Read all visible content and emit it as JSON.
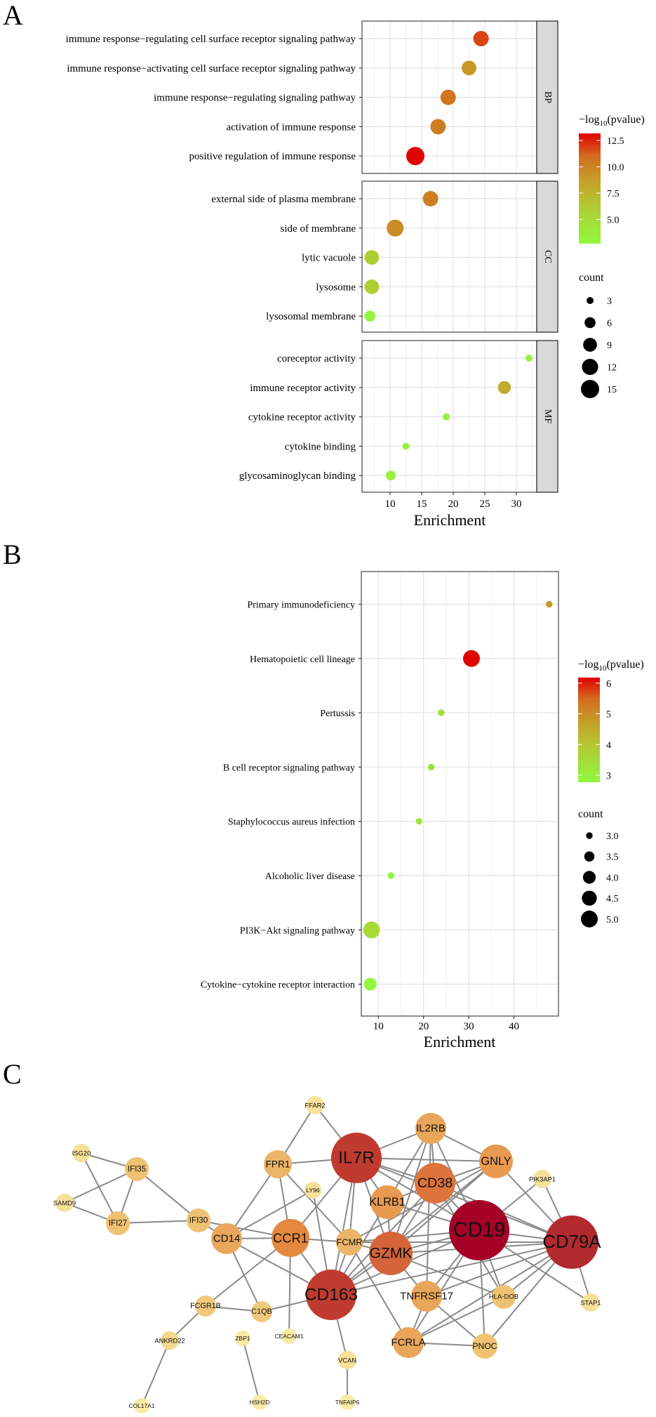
{
  "panels": {
    "a": "A",
    "b": "B",
    "c": "C"
  },
  "chart_data": [
    {
      "type": "scatter",
      "subtype": "dot-plot-faceted",
      "xlabel": "Enrichment",
      "xlim": [
        5.6,
        33.2
      ],
      "xticks": [
        10,
        15,
        20,
        25,
        30
      ],
      "grid": true,
      "color_legend": {
        "title": "−log10(pvalue)",
        "title_main": "−log",
        "title_sub": "10",
        "title_tail": "(pvalue)",
        "range": [
          2.7,
          13.17
        ],
        "ticks": [
          "12.5",
          "10.0",
          "7.5",
          "5.0"
        ],
        "tick_values": [
          12.5,
          10,
          7.5,
          5
        ],
        "low_color": "#90f840",
        "high_color": "#e00000"
      },
      "size_legend": {
        "title": "count",
        "values": [
          3,
          6,
          9,
          12,
          15
        ],
        "labels": [
          "3",
          "6",
          "9",
          "12",
          "15"
        ]
      },
      "legend_position": "right",
      "facets": [
        {
          "name": "BP",
          "terms": [
            {
              "term": "immune response−regulating cell surface receptor signaling pathway",
              "enrichment": 24.4,
              "neglog10p": 11.8,
              "count": 11
            },
            {
              "term": "immune response−activating cell surface receptor signaling pathway",
              "enrichment": 22.5,
              "neglog10p": 9.0,
              "count": 10
            },
            {
              "term": "immune response−regulating signaling pathway",
              "enrichment": 19.2,
              "neglog10p": 10.6,
              "count": 11
            },
            {
              "term": "activation of immune response",
              "enrichment": 17.6,
              "neglog10p": 10.2,
              "count": 11
            },
            {
              "term": "positive regulation of immune response",
              "enrichment": 14.0,
              "neglog10p": 13.1,
              "count": 15
            }
          ]
        },
        {
          "name": "CC",
          "terms": [
            {
              "term": "external side of plasma membrane",
              "enrichment": 16.4,
              "neglog10p": 10.2,
              "count": 11
            },
            {
              "term": "side of membrane",
              "enrichment": 10.8,
              "neglog10p": 9.6,
              "count": 13
            },
            {
              "term": "lytic vacuole",
              "enrichment": 7.1,
              "neglog10p": 5.8,
              "count": 10
            },
            {
              "term": "lysosome",
              "enrichment": 7.1,
              "neglog10p": 5.8,
              "count": 10
            },
            {
              "term": "lysosomal membrane",
              "enrichment": 6.8,
              "neglog10p": 3.0,
              "count": 6
            }
          ]
        },
        {
          "name": "MF",
          "terms": [
            {
              "term": "coreceptor activity",
              "enrichment": 32.0,
              "neglog10p": 3.2,
              "count": 3
            },
            {
              "term": "immune receptor activity",
              "enrichment": 28.1,
              "neglog10p": 8.0,
              "count": 8
            },
            {
              "term": "cytokine receptor activity",
              "enrichment": 18.9,
              "neglog10p": 3.2,
              "count": 3
            },
            {
              "term": "cytokine binding",
              "enrichment": 12.5,
              "neglog10p": 3.2,
              "count": 3
            },
            {
              "term": "glycosaminoglycan binding",
              "enrichment": 10.1,
              "neglog10p": 3.3,
              "count": 5
            }
          ]
        }
      ]
    },
    {
      "type": "scatter",
      "subtype": "dot-plot",
      "xlabel": "Enrichment",
      "xlim": [
        6.2,
        49.9
      ],
      "xticks": [
        10,
        20,
        30,
        40
      ],
      "grid": true,
      "color_legend": {
        "title": "−log10(pvalue)",
        "title_main": "−log",
        "title_sub": "10",
        "title_tail": "(pvalue)",
        "range": [
          2.77,
          6.18
        ],
        "ticks": [
          "6",
          "5",
          "4",
          "3"
        ],
        "tick_values": [
          6,
          5,
          4,
          3
        ],
        "low_color": "#90f840",
        "high_color": "#e00000"
      },
      "size_legend": {
        "title": "count",
        "values": [
          3.0,
          3.5,
          4.0,
          4.5,
          5.0
        ],
        "labels": [
          "3.0",
          "3.5",
          "4.0",
          "4.5",
          "5.0"
        ]
      },
      "legend_position": "right",
      "terms": [
        {
          "term": "Primary immunodeficiency",
          "enrichment": 47.8,
          "neglog10p": 4.8,
          "count": 3
        },
        {
          "term": "Hematopoietic cell lineage",
          "enrichment": 30.6,
          "neglog10p": 6.2,
          "count": 5
        },
        {
          "term": "Pertussis",
          "enrichment": 23.9,
          "neglog10p": 3.4,
          "count": 3
        },
        {
          "term": "B cell receptor signaling pathway",
          "enrichment": 21.7,
          "neglog10p": 3.4,
          "count": 3
        },
        {
          "term": "Staphylococcus aureus infection",
          "enrichment": 19.0,
          "neglog10p": 3.2,
          "count": 3
        },
        {
          "term": "Alcoholic liver disease",
          "enrichment": 12.8,
          "neglog10p": 2.9,
          "count": 3
        },
        {
          "term": "PI3K−Akt signaling pathway",
          "enrichment": 8.5,
          "neglog10p": 3.5,
          "count": 5
        },
        {
          "term": "Cytokine−cytokine receptor interaction",
          "enrichment": 8.2,
          "neglog10p": 2.8,
          "count": 4
        }
      ]
    }
  ],
  "network": {
    "nodes": [
      {
        "id": "FFAR2",
        "color": "#f7e09a"
      },
      {
        "id": "ISG20",
        "color": "#f7e09a"
      },
      {
        "id": "IFI35",
        "color": "#efc272"
      },
      {
        "id": "SAMD9",
        "color": "#f7e09a"
      },
      {
        "id": "IFI27",
        "color": "#efc272"
      },
      {
        "id": "IFI30",
        "color": "#efc272"
      },
      {
        "id": "FPR1",
        "color": "#ecb468"
      },
      {
        "id": "LY96",
        "color": "#f7e09a"
      },
      {
        "id": "IL2RB",
        "color": "#e9a65a"
      },
      {
        "id": "IL7R",
        "color": "#bf3b30"
      },
      {
        "id": "GNLY",
        "color": "#e89a50"
      },
      {
        "id": "PIK3AP1",
        "color": "#f7e09a"
      },
      {
        "id": "CD38",
        "color": "#dc743c"
      },
      {
        "id": "KLRB1",
        "color": "#e89a50"
      },
      {
        "id": "CD19",
        "color": "#a50026"
      },
      {
        "id": "CD79A",
        "color": "#b22a2e"
      },
      {
        "id": "CD14",
        "color": "#eaa65c"
      },
      {
        "id": "CCR1",
        "color": "#e4883e"
      },
      {
        "id": "FCMR",
        "color": "#ecb468"
      },
      {
        "id": "GZMK",
        "color": "#d6643a"
      },
      {
        "id": "CD163",
        "color": "#bf3b30"
      },
      {
        "id": "TNFRSF17",
        "color": "#e9a65a"
      },
      {
        "id": "HLA-DOB",
        "color": "#efc272"
      },
      {
        "id": "STAP1",
        "color": "#f7e09a"
      },
      {
        "id": "FCGR1B",
        "color": "#f0ca7c"
      },
      {
        "id": "C1QB",
        "color": "#f0ca7c"
      },
      {
        "id": "FCRLA",
        "color": "#e9a65a"
      },
      {
        "id": "PNOC",
        "color": "#efc272"
      },
      {
        "id": "ANKRD22",
        "color": "#f4d88e"
      },
      {
        "id": "ZBP1",
        "color": "#f9eaa4"
      },
      {
        "id": "CEACAM1",
        "color": "#f9eaa4"
      },
      {
        "id": "VCAN",
        "color": "#f7e09a"
      },
      {
        "id": "COL17A1",
        "color": "#f9eaa4"
      },
      {
        "id": "HSH2D",
        "color": "#f9eaa4"
      },
      {
        "id": "TNFAIP6",
        "color": "#f9eaa4"
      }
    ],
    "edges": [
      [
        "ISG20",
        "IFI35"
      ],
      [
        "ISG20",
        "IFI27"
      ],
      [
        "IFI35",
        "SAMD9"
      ],
      [
        "IFI35",
        "IFI27"
      ],
      [
        "IFI35",
        "IFI30"
      ],
      [
        "SAMD9",
        "IFI27"
      ],
      [
        "IFI27",
        "IFI30"
      ],
      [
        "IFI30",
        "CD14"
      ],
      [
        "IFI30",
        "CCR1"
      ],
      [
        "FFAR2",
        "FPR1"
      ],
      [
        "FFAR2",
        "IL7R"
      ],
      [
        "FPR1",
        "IL7R"
      ],
      [
        "FPR1",
        "CD14"
      ],
      [
        "FPR1",
        "CCR1"
      ],
      [
        "FPR1",
        "FCMR"
      ],
      [
        "LY96",
        "CD14"
      ],
      [
        "LY96",
        "CD163"
      ],
      [
        "IL7R",
        "CCR1"
      ],
      [
        "IL7R",
        "IL2RB"
      ],
      [
        "IL7R",
        "GNLY"
      ],
      [
        "IL7R",
        "CD38"
      ],
      [
        "IL7R",
        "KLRB1"
      ],
      [
        "IL7R",
        "CD19"
      ],
      [
        "IL7R",
        "CD79A"
      ],
      [
        "IL7R",
        "GZMK"
      ],
      [
        "IL7R",
        "FCMR"
      ],
      [
        "IL7R",
        "CD163"
      ],
      [
        "IL2RB",
        "CD38"
      ],
      [
        "IL2RB",
        "KLRB1"
      ],
      [
        "IL2RB",
        "GZMK"
      ],
      [
        "IL2RB",
        "GNLY"
      ],
      [
        "IL2RB",
        "CD19"
      ],
      [
        "IL2RB",
        "TNFRSF17"
      ],
      [
        "GNLY",
        "CD38"
      ],
      [
        "GNLY",
        "CD79A"
      ],
      [
        "GNLY",
        "GZMK"
      ],
      [
        "GNLY",
        "CD163"
      ],
      [
        "GNLY",
        "FCMR"
      ],
      [
        "PIK3AP1",
        "CD19"
      ],
      [
        "PIK3AP1",
        "CD79A"
      ],
      [
        "CD38",
        "CD19"
      ],
      [
        "CD38",
        "CD79A"
      ],
      [
        "CD38",
        "GZMK"
      ],
      [
        "CD38",
        "KLRB1"
      ],
      [
        "CD38",
        "CD163"
      ],
      [
        "CD38",
        "HLA-DOB"
      ],
      [
        "KLRB1",
        "CD19"
      ],
      [
        "KLRB1",
        "GZMK"
      ],
      [
        "KLRB1",
        "CD163"
      ],
      [
        "CD19",
        "CD79A"
      ],
      [
        "CD19",
        "GZMK"
      ],
      [
        "CD19",
        "CD163"
      ],
      [
        "CD19",
        "TNFRSF17"
      ],
      [
        "CD19",
        "FCRLA"
      ],
      [
        "CD19",
        "HLA-DOB"
      ],
      [
        "CD19",
        "PNOC"
      ],
      [
        "CD19",
        "STAP1"
      ],
      [
        "CD19",
        "FCMR"
      ],
      [
        "CD79A",
        "GZMK"
      ],
      [
        "CD79A",
        "CD163"
      ],
      [
        "CD79A",
        "TNFRSF17"
      ],
      [
        "CD79A",
        "HLA-DOB"
      ],
      [
        "CD79A",
        "FCRLA"
      ],
      [
        "CD79A",
        "PNOC"
      ],
      [
        "CD79A",
        "STAP1"
      ],
      [
        "CD79A",
        "FCMR"
      ],
      [
        "GZMK",
        "CD163"
      ],
      [
        "GZMK",
        "TNFRSF17"
      ],
      [
        "GZMK",
        "HLA-DOB"
      ],
      [
        "GZMK",
        "FCMR"
      ],
      [
        "CD163",
        "VCAN"
      ],
      [
        "CD163",
        "C1QB"
      ],
      [
        "CD163",
        "CD14"
      ],
      [
        "CD163",
        "CCR1"
      ],
      [
        "CD163",
        "FCMR"
      ],
      [
        "FCMR",
        "FCRLA"
      ],
      [
        "FCMR",
        "CCR1"
      ],
      [
        "TNFRSF17",
        "FCRLA"
      ],
      [
        "TNFRSF17",
        "PNOC"
      ],
      [
        "FCRLA",
        "PNOC"
      ],
      [
        "FCRLA",
        "HLA-DOB"
      ],
      [
        "CD14",
        "CCR1"
      ],
      [
        "CD14",
        "C1QB"
      ],
      [
        "CCR1",
        "FCGR1B"
      ],
      [
        "CCR1",
        "CEACAM1"
      ],
      [
        "FCGR1B",
        "C1QB"
      ],
      [
        "FCGR1B",
        "ANKRD22"
      ],
      [
        "ANKRD22",
        "COL17A1"
      ],
      [
        "ZBP1",
        "HSH2D"
      ],
      [
        "VCAN",
        "TNFAIP6"
      ]
    ]
  }
}
